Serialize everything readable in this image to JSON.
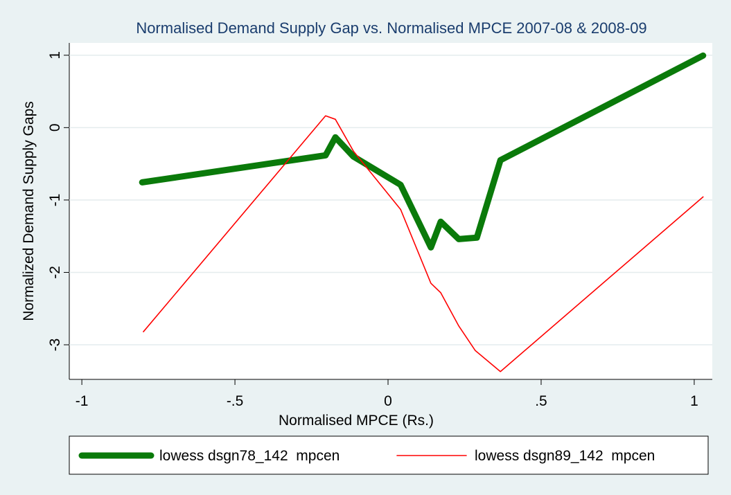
{
  "chart_data": {
    "type": "line",
    "title": "Normalised Demand Supply Gap vs. Normalised MPCE 2007-08 & 2008-09",
    "x_label": "Normalised MPCE (Rs.)",
    "y_label": "Normalized Demand Supply Gaps",
    "xlim": [
      -1.041,
      1.059
    ],
    "ylim": [
      -3.478,
      1.17
    ],
    "xticks": [
      -1,
      {
        "value": -0.5,
        "label": "-.5"
      },
      0,
      {
        "value": 0.5,
        "label": ".5"
      },
      1
    ],
    "yticks": [
      1,
      0,
      -1,
      -2,
      -3
    ],
    "grid": true,
    "series": [
      {
        "name": "lowess dsgn78_142  mpcen",
        "color": "#0a7a0a",
        "width": 9,
        "x": [
          -0.803,
          -0.204,
          -0.172,
          -0.113,
          0.041,
          0.14,
          0.172,
          0.231,
          0.29,
          0.367,
          1.029
        ],
        "values": [
          -0.756,
          -0.383,
          -0.134,
          -0.4,
          -0.79,
          -1.655,
          -1.3,
          -1.54,
          -1.52,
          -0.45,
          0.995
        ]
      },
      {
        "name": "lowess dsgn89_142  mpcen",
        "color": "#ff0000",
        "width": 1.6,
        "x": [
          -0.799,
          -0.204,
          -0.172,
          -0.113,
          0.041,
          0.14,
          0.172,
          0.231,
          0.285,
          0.367,
          1.029
        ],
        "values": [
          -2.82,
          0.163,
          0.115,
          -0.325,
          -1.13,
          -2.15,
          -2.28,
          -2.74,
          -3.08,
          -3.37,
          -0.957
        ]
      }
    ]
  }
}
